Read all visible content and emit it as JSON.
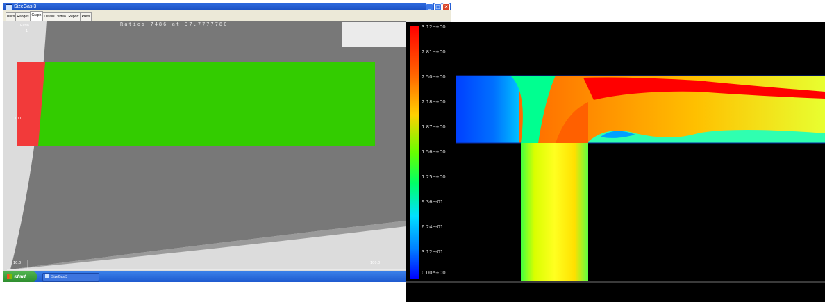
{
  "window": {
    "title": "SizeGas 3",
    "controls": [
      "_",
      "□",
      "✕"
    ]
  },
  "tabs": [
    {
      "label": "Units",
      "active": false
    },
    {
      "label": "Ranges",
      "active": false
    },
    {
      "label": "Graph",
      "active": true
    },
    {
      "label": "Details",
      "active": false
    },
    {
      "label": "Video",
      "active": false
    },
    {
      "label": "Report",
      "active": false
    },
    {
      "label": "Prefs",
      "active": false
    }
  ],
  "graph": {
    "title": "Ratios 7486 at 37.777778C",
    "top_left_label": "Ratio",
    "top_left_value": "1",
    "mid_left_label": "10.0",
    "bottom_left_value": "10.0",
    "bottom_right_value": "100.0",
    "colors": {
      "background": "#dcdcdc",
      "envelope": "#787878",
      "green_zone": "#33cc00",
      "red_zone": "#f23a3a"
    }
  },
  "taskbar": {
    "start_label": "start",
    "item_label": "SizeGas 3"
  },
  "cfd_legend": {
    "ticks": [
      "3.12e+00",
      "2.81e+00",
      "2.50e+00",
      "2.18e+00",
      "1.87e+00",
      "1.56e+00",
      "1.25e+00",
      "9.36e-01",
      "6.24e-01",
      "3.12e-01",
      "0.00e+00"
    ]
  }
}
